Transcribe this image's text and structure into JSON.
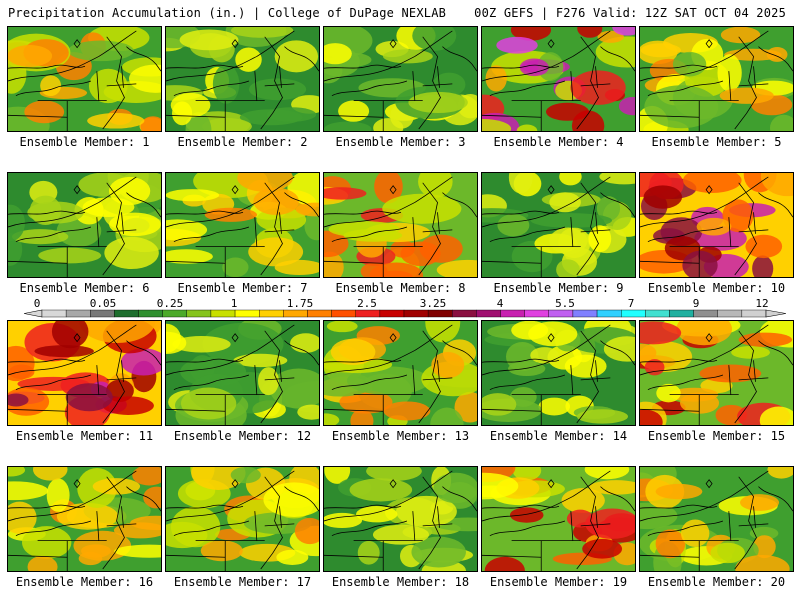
{
  "header": {
    "left_title": "Precipitation Accumulation (in.) | College of DuPage NEXLAB",
    "right_title": "00Z GEFS | F276 Valid: 12Z SAT OCT 04 2025"
  },
  "panels": [
    {
      "label": "Ensemble Member: 1",
      "intensity": "moderate"
    },
    {
      "label": "Ensemble Member: 2",
      "intensity": "light"
    },
    {
      "label": "Ensemble Member: 3",
      "intensity": "light"
    },
    {
      "label": "Ensemble Member: 4",
      "intensity": "heavy-south"
    },
    {
      "label": "Ensemble Member: 5",
      "intensity": "moderate"
    },
    {
      "label": "Ensemble Member: 6",
      "intensity": "light"
    },
    {
      "label": "Ensemble Member: 7",
      "intensity": "moderate"
    },
    {
      "label": "Ensemble Member: 8",
      "intensity": "heavy"
    },
    {
      "label": "Ensemble Member: 9",
      "intensity": "light"
    },
    {
      "label": "Ensemble Member: 10",
      "intensity": "very-heavy"
    },
    {
      "label": "Ensemble Member: 11",
      "intensity": "very-heavy"
    },
    {
      "label": "Ensemble Member: 12",
      "intensity": "light"
    },
    {
      "label": "Ensemble Member: 13",
      "intensity": "moderate"
    },
    {
      "label": "Ensemble Member: 14",
      "intensity": "light"
    },
    {
      "label": "Ensemble Member: 15",
      "intensity": "heavy"
    },
    {
      "label": "Ensemble Member: 16",
      "intensity": "moderate"
    },
    {
      "label": "Ensemble Member: 17",
      "intensity": "moderate"
    },
    {
      "label": "Ensemble Member: 18",
      "intensity": "light"
    },
    {
      "label": "Ensemble Member: 19",
      "intensity": "heavy"
    },
    {
      "label": "Ensemble Member: 20",
      "intensity": "moderate"
    }
  ],
  "colorbar": {
    "tick_labels": [
      "0",
      "0.05",
      "0.25",
      "1",
      "1.75",
      "2.5",
      "3.25",
      "4",
      "5.5",
      "7",
      "9",
      "12"
    ],
    "colors": [
      "#d8d8d8",
      "#a8a8a8",
      "#787878",
      "#1e6e2e",
      "#2f8f2f",
      "#4caa2a",
      "#86c41c",
      "#c8e000",
      "#ffff00",
      "#ffd000",
      "#ffa800",
      "#ff8000",
      "#ff5000",
      "#ee2020",
      "#c80000",
      "#a00000",
      "#800000",
      "#8a1040",
      "#a01070",
      "#c820b0",
      "#e040e0",
      "#c060f0",
      "#8080ff",
      "#30d0ff",
      "#20ffff",
      "#40e0d0",
      "#20b0a0",
      "#909090",
      "#b8b8b8",
      "#d0d0d0"
    ]
  }
}
